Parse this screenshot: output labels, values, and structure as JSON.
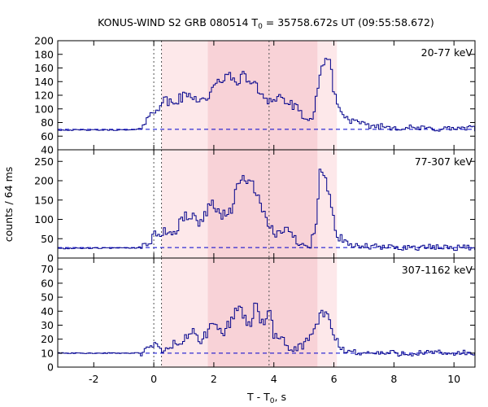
{
  "figure": {
    "title_main": "KONUS-WIND S2 GRB 080514 T",
    "title_sub": "0",
    "title_rest": " = 35758.672s UT (09:55:58.672)",
    "ylabel": "counts / 64 ms",
    "xlabel_main": "T - T",
    "xlabel_sub": "0",
    "xlabel_rest": ", s"
  },
  "colors": {
    "curve": "#00008b",
    "background_dash": "#0000cd",
    "shade_light": "#fde8ea",
    "shade_dark": "#f8d2d7",
    "axis": "#000000"
  },
  "chart_data": {
    "type": "line",
    "style": "step",
    "x_axis": {
      "range": [
        -3.2,
        10.7
      ],
      "ticks": [
        -2,
        0,
        2,
        4,
        6,
        8,
        10
      ]
    },
    "bin_width_s": 0.064,
    "vertical_dotted_lines": [
      0,
      0.256,
      3.84
    ],
    "shaded_intervals": [
      {
        "from": 0.256,
        "to": 6.1,
        "shade": "light"
      },
      {
        "from": 1.8,
        "to": 5.45,
        "shade": "dark"
      }
    ],
    "panels": [
      {
        "label": "20-77 keV",
        "ylim": [
          40,
          200
        ],
        "yticks": [
          40,
          60,
          80,
          100,
          120,
          140,
          160,
          180,
          200
        ],
        "background_level": 70,
        "keypoints": [
          [
            -3.2,
            69
          ],
          [
            -0.6,
            69
          ],
          [
            -0.4,
            74
          ],
          [
            -0.2,
            86
          ],
          [
            0.1,
            102
          ],
          [
            0.3,
            112
          ],
          [
            0.6,
            108
          ],
          [
            1.0,
            118
          ],
          [
            1.3,
            120
          ],
          [
            1.6,
            112
          ],
          [
            1.9,
            122
          ],
          [
            2.1,
            136
          ],
          [
            2.4,
            150
          ],
          [
            2.7,
            140
          ],
          [
            3.0,
            148
          ],
          [
            3.3,
            138
          ],
          [
            3.6,
            122
          ],
          [
            3.9,
            112
          ],
          [
            4.2,
            118
          ],
          [
            4.5,
            108
          ],
          [
            4.8,
            98
          ],
          [
            5.1,
            84
          ],
          [
            5.3,
            80
          ],
          [
            5.5,
            142
          ],
          [
            5.7,
            178
          ],
          [
            5.85,
            170
          ],
          [
            6.0,
            128
          ],
          [
            6.2,
            96
          ],
          [
            6.5,
            84
          ],
          [
            7.0,
            76
          ],
          [
            8.0,
            73
          ],
          [
            9.0,
            71
          ],
          [
            10.7,
            71
          ]
        ]
      },
      {
        "label": "77-307 keV",
        "ylim": [
          0,
          280
        ],
        "yticks": [
          0,
          50,
          100,
          150,
          200,
          250
        ],
        "background_level": 27,
        "keypoints": [
          [
            -3.2,
            25
          ],
          [
            -0.6,
            26
          ],
          [
            -0.3,
            34
          ],
          [
            0.0,
            55
          ],
          [
            0.3,
            70
          ],
          [
            0.7,
            62
          ],
          [
            1.0,
            110
          ],
          [
            1.3,
            105
          ],
          [
            1.6,
            90
          ],
          [
            1.9,
            150
          ],
          [
            2.2,
            110
          ],
          [
            2.6,
            125
          ],
          [
            2.8,
            190
          ],
          [
            3.0,
            210
          ],
          [
            3.2,
            200
          ],
          [
            3.4,
            170
          ],
          [
            3.6,
            130
          ],
          [
            3.8,
            78
          ],
          [
            4.1,
            60
          ],
          [
            4.3,
            80
          ],
          [
            4.6,
            58
          ],
          [
            4.9,
            38
          ],
          [
            5.2,
            35
          ],
          [
            5.4,
            80
          ],
          [
            5.55,
            235
          ],
          [
            5.7,
            205
          ],
          [
            5.9,
            150
          ],
          [
            6.1,
            55
          ],
          [
            6.5,
            32
          ],
          [
            7.5,
            28
          ],
          [
            10.7,
            27
          ]
        ]
      },
      {
        "label": "307-1162 keV",
        "ylim": [
          0,
          78
        ],
        "yticks": [
          0,
          10,
          20,
          30,
          40,
          50,
          60,
          70
        ],
        "background_level": 10,
        "keypoints": [
          [
            -3.2,
            10
          ],
          [
            -0.4,
            10
          ],
          [
            -0.2,
            13
          ],
          [
            0.0,
            16
          ],
          [
            0.3,
            11
          ],
          [
            0.6,
            16
          ],
          [
            1.0,
            18
          ],
          [
            1.3,
            27
          ],
          [
            1.6,
            18
          ],
          [
            2.0,
            32
          ],
          [
            2.3,
            23
          ],
          [
            2.6,
            35
          ],
          [
            2.8,
            44
          ],
          [
            3.0,
            36
          ],
          [
            3.2,
            28
          ],
          [
            3.4,
            48
          ],
          [
            3.6,
            30
          ],
          [
            3.85,
            40
          ],
          [
            4.0,
            22
          ],
          [
            4.3,
            18
          ],
          [
            4.6,
            12
          ],
          [
            4.9,
            15
          ],
          [
            5.2,
            20
          ],
          [
            5.4,
            30
          ],
          [
            5.6,
            38
          ],
          [
            5.8,
            36
          ],
          [
            6.0,
            22
          ],
          [
            6.3,
            12
          ],
          [
            7.0,
            10
          ],
          [
            10.7,
            10
          ]
        ]
      }
    ]
  }
}
